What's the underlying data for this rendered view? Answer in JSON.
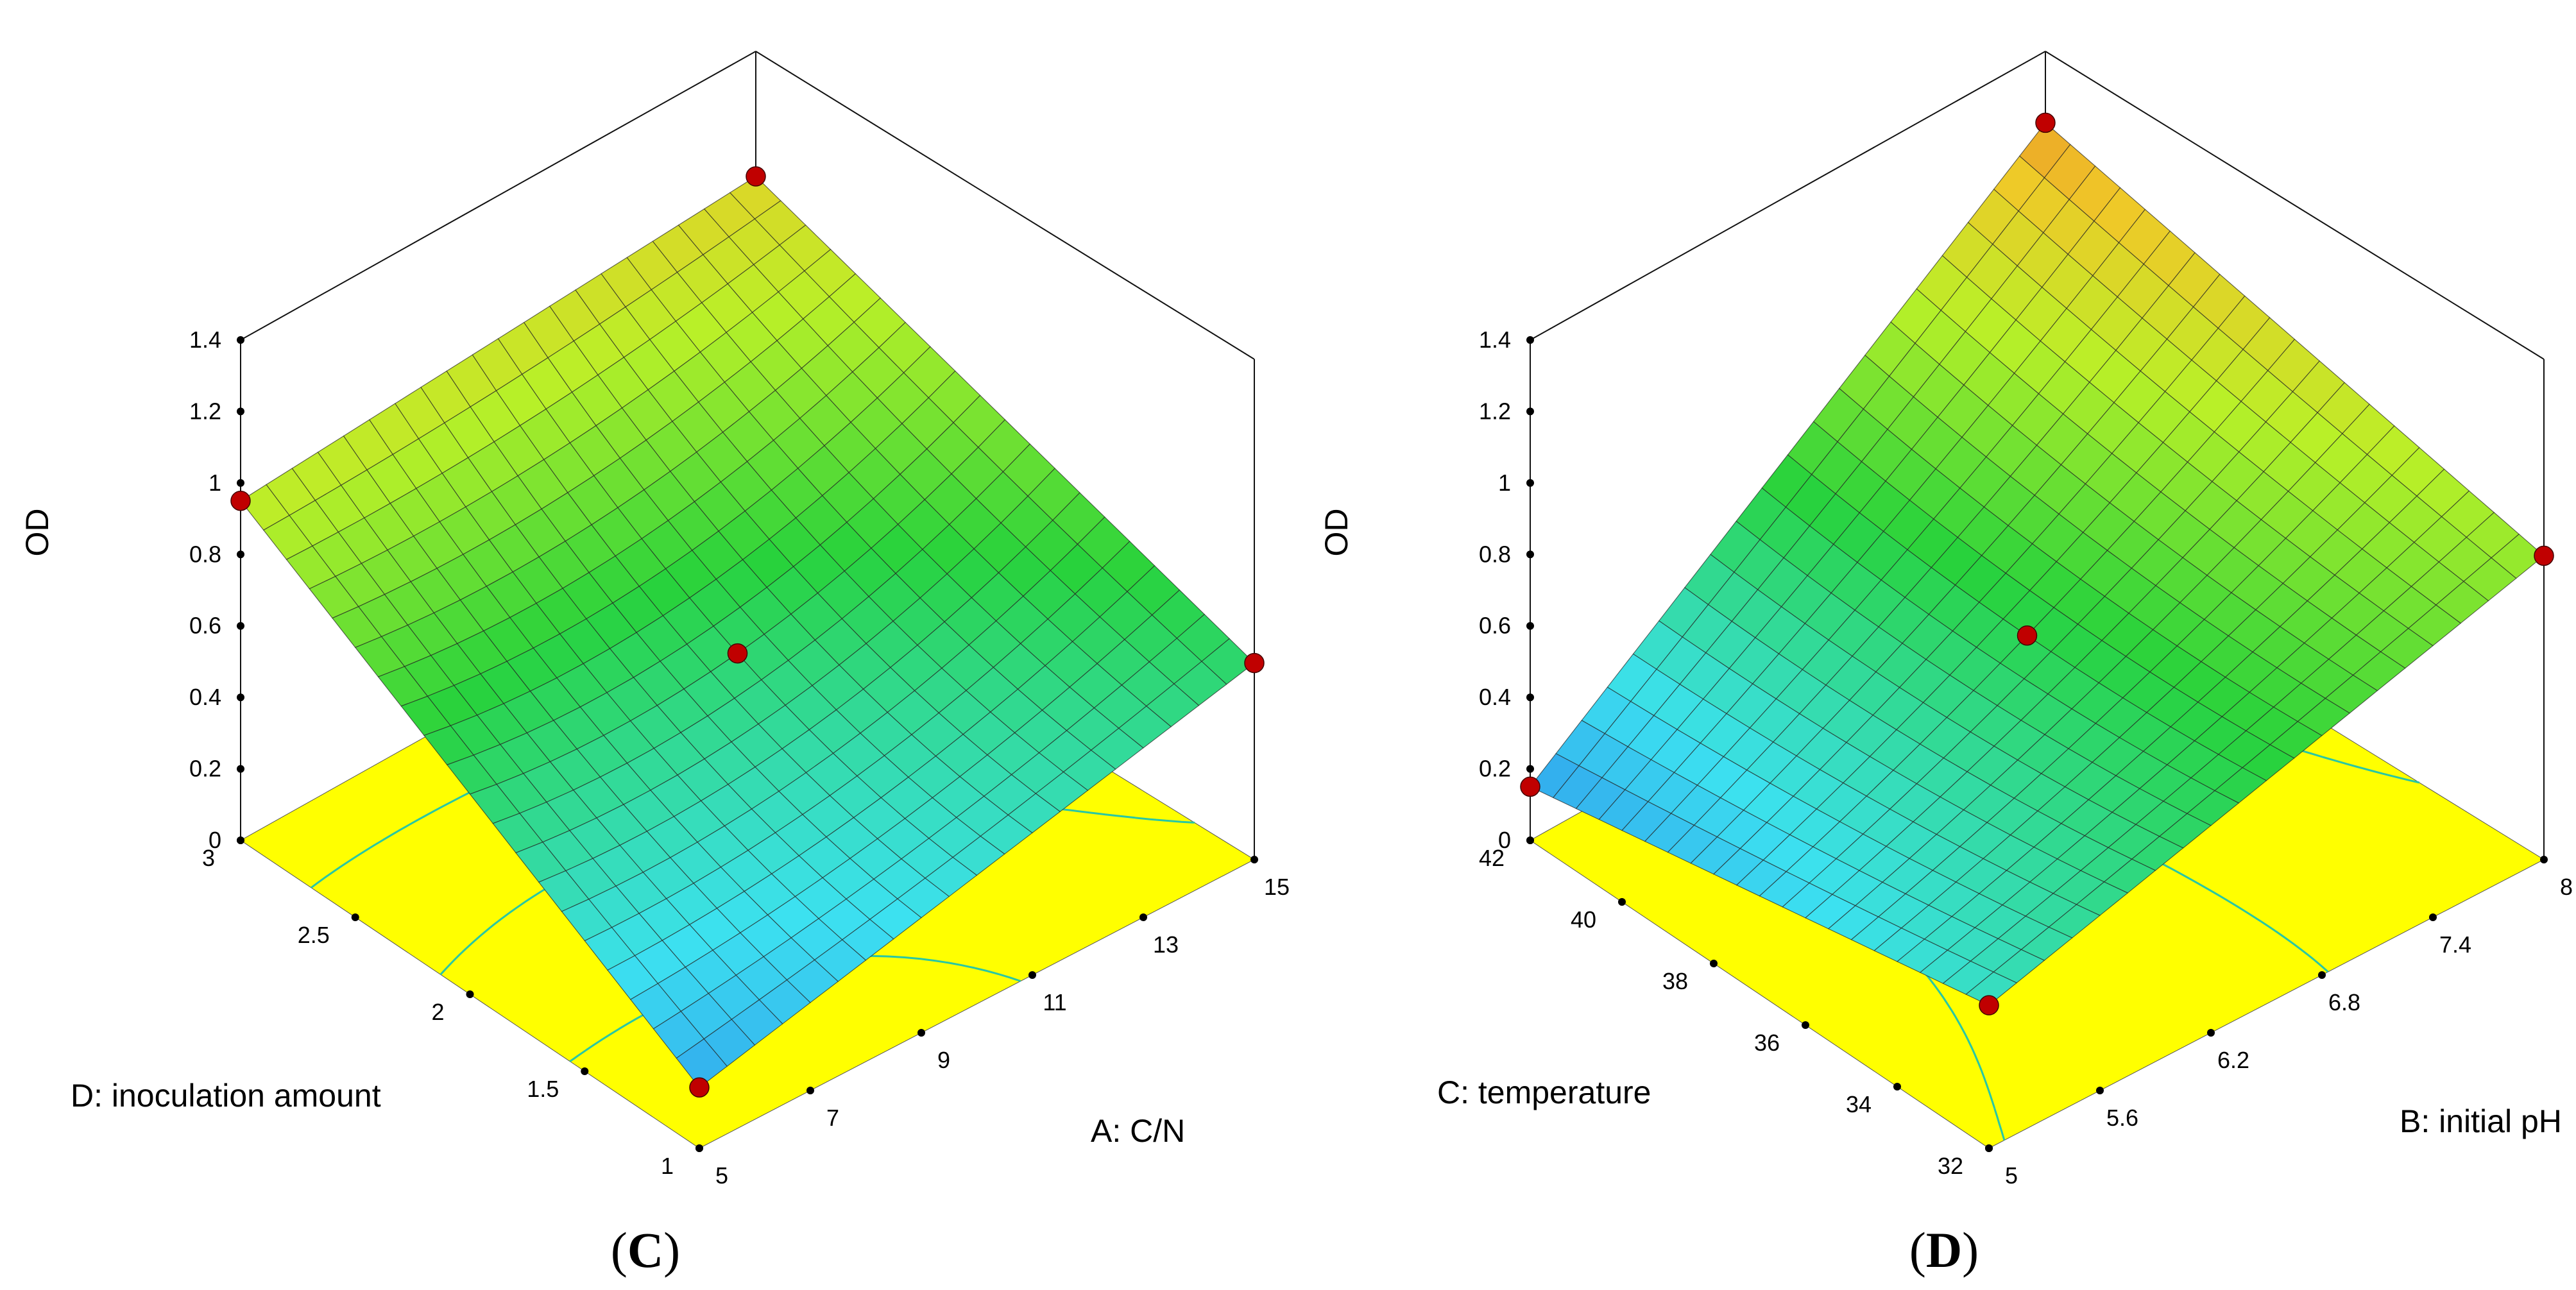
{
  "chart_data": [
    {
      "type": "surface",
      "panel": "C",
      "zlabel": "OD",
      "xlabel": "A: C/N",
      "ylabel": "D:  inoculation amount",
      "x_ticks": [
        "5",
        "7",
        "9",
        "11",
        "13",
        "15"
      ],
      "y_ticks": [
        "1",
        "1.5",
        "2",
        "2.5",
        "3"
      ],
      "z_ticks": [
        "0",
        "0.2",
        "0.4",
        "0.6",
        "0.8",
        "1",
        "1.2",
        "1.4"
      ],
      "xlim": [
        5,
        15
      ],
      "ylim": [
        1,
        3
      ],
      "zlim": [
        0,
        1.4
      ],
      "corner_values": {
        "x5_y1": 0.17,
        "x15_y1": 0.55,
        "x5_y3": 0.95,
        "x15_y3": 1.05
      },
      "center_value": 0.55,
      "design_points": [
        {
          "x": 5,
          "y": 3,
          "z": 0.95
        },
        {
          "x": 15,
          "y": 3,
          "z": 1.05
        },
        {
          "x": 10,
          "y": 2,
          "z": 0.55
        },
        {
          "x": 5,
          "y": 1,
          "z": 0.17
        },
        {
          "x": 15,
          "y": 1,
          "z": 0.55
        }
      ]
    },
    {
      "type": "surface",
      "panel": "D",
      "zlabel": "OD",
      "xlabel": "B: initial pH",
      "ylabel": "C: temperature",
      "x_ticks": [
        "5",
        "5.6",
        "6.2",
        "6.8",
        "7.4",
        "8"
      ],
      "y_ticks": [
        "32",
        "34",
        "36",
        "38",
        "40",
        "42"
      ],
      "z_ticks": [
        "0",
        "0.2",
        "0.4",
        "0.6",
        "0.8",
        "1",
        "1.2",
        "1.4"
      ],
      "xlim": [
        5,
        8
      ],
      "ylim": [
        32,
        42
      ],
      "zlim": [
        0,
        1.4
      ],
      "corner_values": {
        "x5_y32": 0.4,
        "x8_y32": 0.85,
        "x5_y42": 0.15,
        "x8_y42": 1.2
      },
      "center_value": 0.6,
      "design_points": [
        {
          "x": 5,
          "y": 42,
          "z": 0.15
        },
        {
          "x": 8,
          "y": 42,
          "z": 1.2
        },
        {
          "x": 6.5,
          "y": 37,
          "z": 0.6
        },
        {
          "x": 5,
          "y": 32,
          "z": 0.4
        },
        {
          "x": 8,
          "y": 32,
          "z": 0.85
        }
      ]
    }
  ],
  "captions": {
    "c": {
      "open": "(",
      "letter": "C",
      "close": ")"
    },
    "d": {
      "open": "(",
      "letter": "D",
      "close": ")"
    }
  },
  "colors": {
    "floor": "#ffff00",
    "contour": "#29c7a4",
    "point_red": "#c00000",
    "point_pink": "#e88b8b",
    "grid_line": "#222222"
  }
}
